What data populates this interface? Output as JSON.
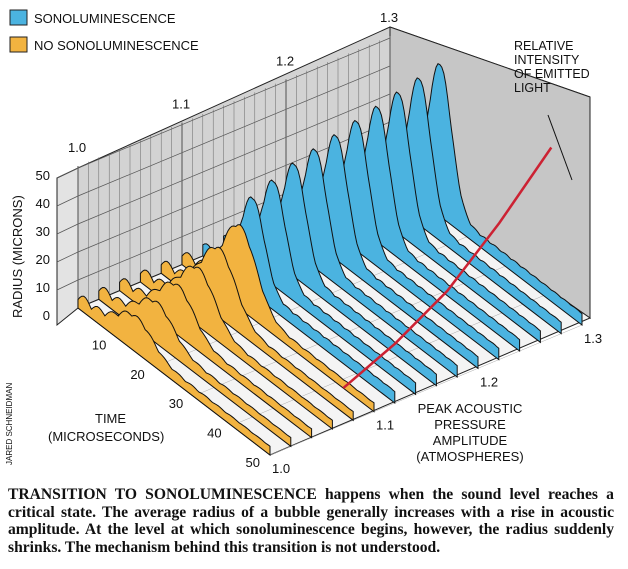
{
  "legend": {
    "items": [
      {
        "label": "SONOLUMINESCENCE",
        "color": "#4bb3e0"
      },
      {
        "label": "NO SONOLUMINESCENCE",
        "color": "#f2b340"
      }
    ]
  },
  "axes": {
    "radius_label": "RADIUS (MICRONS)",
    "radius_ticks": [
      "0",
      "10",
      "20",
      "30",
      "40",
      "50"
    ],
    "time_label_line1": "TIME",
    "time_label_line2": "(MICROSECONDS)",
    "time_ticks": [
      "10",
      "20",
      "30",
      "40",
      "50"
    ],
    "pressure_label_lines": [
      "PEAK ACOUSTIC",
      "PRESSURE",
      "AMPLITUDE",
      "(ATMOSPHERES)"
    ],
    "pressure_ticks": [
      "1.0",
      "1.1",
      "1.2",
      "1.3"
    ],
    "back_pressure_ticks": [
      "1.0",
      "1.1",
      "1.2",
      "1.3"
    ]
  },
  "intensity_label_lines": [
    "RELATIVE",
    "INTENSITY",
    "OF EMITTED",
    "LIGHT"
  ],
  "credit": "JARED SCHNEIDMAN",
  "caption": {
    "lead": "TRANSITION TO SONOLUMINESCENCE",
    "rest": " happens when the sound level reaches a critical state. The average radius of a bubble generally increases with a rise in acoustic amplitude. At the level at which sonoluminescence begins, however, the radius suddenly shrinks. The mechanism behind this transition is not understood."
  },
  "chart_data": {
    "type": "area",
    "x_axis": {
      "label": "TIME (MICROSECONDS)",
      "ticks": [
        10,
        20,
        30,
        40,
        50
      ],
      "range": [
        0,
        50
      ]
    },
    "y_axis": {
      "label": "RADIUS (MICRONS)",
      "ticks": [
        0,
        10,
        20,
        30,
        40,
        50
      ],
      "range": [
        0,
        50
      ]
    },
    "z_axis": {
      "label": "PEAK ACOUSTIC PRESSURE AMPLITUDE (ATMOSPHERES)",
      "ticks": [
        1.0,
        1.1,
        1.2,
        1.3
      ],
      "range": [
        1.0,
        1.3
      ]
    },
    "peak_radius_by_pressure": {
      "pressure": [
        1.0,
        1.02,
        1.04,
        1.06,
        1.08,
        1.1,
        1.12,
        1.14,
        1.16,
        1.18,
        1.2,
        1.22,
        1.24,
        1.26,
        1.28,
        1.3
      ],
      "radius": [
        12,
        14,
        17,
        20,
        24,
        29,
        34,
        37,
        40,
        42,
        44,
        46,
        48,
        50,
        52,
        54
      ],
      "regime": [
        "no",
        "no",
        "no",
        "no",
        "no",
        "no",
        "sono",
        "sono",
        "sono",
        "sono",
        "sono",
        "sono",
        "sono",
        "sono",
        "sono",
        "sono"
      ]
    },
    "intensity_curve": {
      "pressure": [
        1.1,
        1.15,
        1.2,
        1.25,
        1.3
      ],
      "relative_intensity": [
        0,
        0.15,
        0.35,
        0.65,
        1.0
      ],
      "color": "#cc2233"
    }
  }
}
